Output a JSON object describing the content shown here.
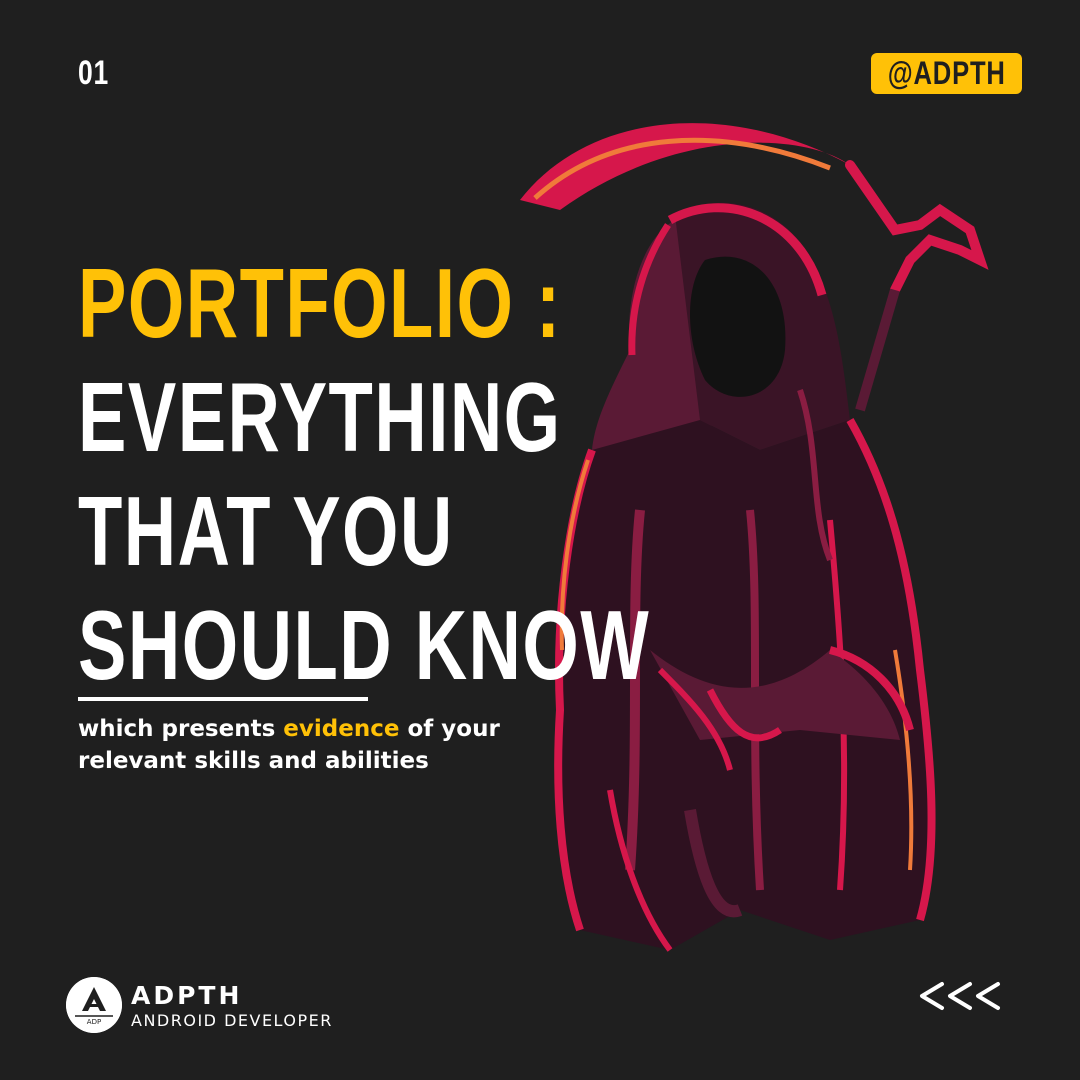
{
  "page_number": "01",
  "handle": "@ADPTH",
  "headline": {
    "line1": "PORTFOLIO :",
    "line2": "EVERYTHING",
    "line3": "THAT YOU",
    "line4": "SHOULD KNOW"
  },
  "subtitle": {
    "part1": "which presents ",
    "highlight": "evidence",
    "part2": " of your",
    "line2": "relevant skills and abilities"
  },
  "brand": {
    "logo_text": "ADP",
    "name": "ADPTH",
    "role": "ANDROID DEVELOPER"
  },
  "nav": {
    "back_icon": "triple-chevron-left-icon"
  },
  "colors": {
    "background": "#1f1f1f",
    "accent": "#ffc107",
    "text": "#ffffff",
    "reaper_red": "#d6174b",
    "reaper_orange": "#f07a3a",
    "reaper_dark": "#5a1a35"
  }
}
